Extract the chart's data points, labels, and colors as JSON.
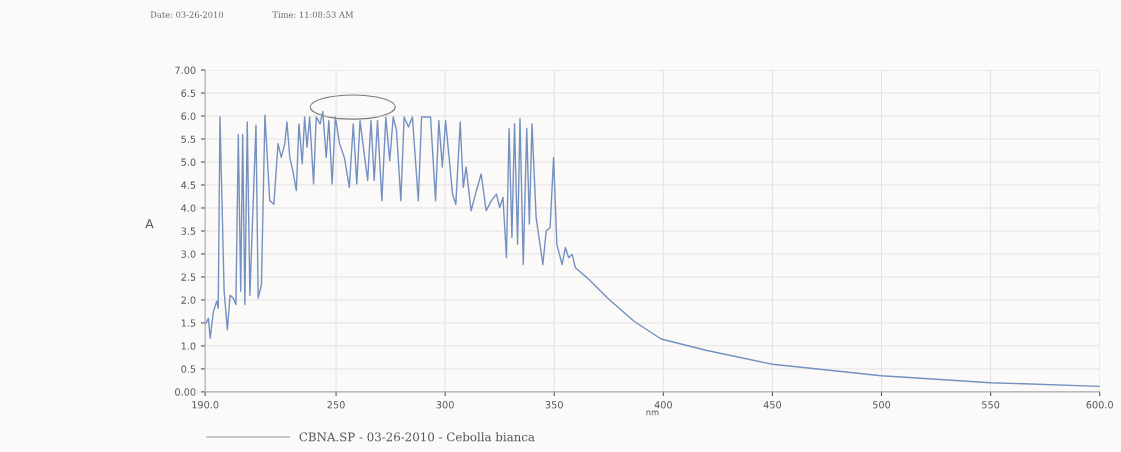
{
  "chart_data": {
    "type": "line",
    "xlabel": "nm",
    "ylabel": "A",
    "annotations": [
      "Date: 03-26-2010",
      "Time: 11:08:53 AM"
    ],
    "x": [
      190,
      191.5,
      192.3,
      193.8,
      195.3,
      196,
      196.8,
      198.7,
      200.2,
      201.4,
      202.9,
      204.1,
      205.2,
      206.3,
      207.2,
      208.2,
      209.3,
      210.5,
      213.3,
      214.3,
      215.8,
      217.4,
      219.6,
      221.5,
      223.4,
      224.9,
      226.5,
      227.5,
      228.8,
      230.3,
      231.8,
      233,
      234.5,
      235.6,
      236.7,
      237.9,
      239.7,
      240.9,
      242.7,
      243.9,
      245.5,
      246.7,
      248.2,
      249.7,
      251.6,
      253.8,
      256.1,
      257.9,
      259.5,
      261,
      262.9,
      264.5,
      266,
      267.5,
      269,
      271,
      272.8,
      274.6,
      276.2,
      277.7,
      279.7,
      281.2,
      283.2,
      285,
      287.7,
      289.2,
      293.3,
      295.6,
      297.1,
      298.7,
      300.2,
      303.4,
      304.9,
      306.9,
      308.3,
      309.6,
      311.9,
      313.9,
      316.5,
      318.8,
      321.2,
      323.5,
      325,
      326.5,
      328.1,
      329.3,
      330.6,
      331.8,
      333.2,
      334.3,
      335.8,
      337.4,
      338.6,
      339.8,
      341.7,
      344.8,
      346.3,
      348.1,
      349.7,
      351.2,
      353.6,
      355.1,
      356.6,
      358.2,
      359.7,
      365.1,
      374.4,
      386.7,
      399,
      420,
      450,
      500,
      550,
      600
    ],
    "series": [
      {
        "name": "CBNA.SP - 03-26-2010 - Cebolla bianca",
        "color": "#7390c0",
        "values": [
          1.46,
          1.6,
          1.17,
          1.75,
          1.97,
          1.82,
          5.98,
          2.19,
          1.35,
          2.1,
          2.04,
          1.9,
          5.6,
          2.19,
          5.6,
          1.9,
          5.87,
          2.1,
          5.8,
          2.04,
          2.33,
          6.02,
          4.16,
          4.08,
          5.4,
          5.1,
          5.4,
          5.87,
          5.1,
          4.78,
          4.38,
          5.83,
          4.96,
          5.98,
          5.32,
          5.98,
          4.52,
          5.98,
          5.83,
          6.1,
          5.1,
          5.9,
          4.52,
          5.98,
          5.4,
          5.1,
          4.45,
          5.83,
          4.52,
          5.9,
          5.18,
          4.6,
          5.9,
          4.6,
          5.9,
          4.16,
          5.98,
          5.03,
          5.98,
          5.69,
          4.16,
          5.98,
          5.76,
          5.98,
          4.16,
          5.98,
          5.98,
          4.16,
          5.9,
          4.89,
          5.9,
          4.3,
          4.08,
          5.87,
          4.45,
          4.89,
          3.94,
          4.3,
          4.74,
          3.94,
          4.16,
          4.3,
          4.01,
          4.23,
          2.92,
          5.73,
          3.36,
          5.83,
          3.21,
          5.94,
          2.77,
          5.73,
          3.65,
          5.83,
          3.79,
          2.77,
          3.5,
          3.57,
          5.1,
          3.21,
          2.77,
          3.14,
          2.92,
          2.99,
          2.7,
          2.48,
          2.04,
          1.53,
          1.15,
          0.9,
          0.6,
          0.35,
          0.2,
          0.12
        ]
      }
    ],
    "xlim": [
      190,
      600
    ],
    "xticks": [
      {
        "value": 190,
        "label": "190.0"
      },
      250,
      300,
      350,
      400,
      450,
      500,
      550,
      {
        "value": 600,
        "label": "600.0"
      }
    ],
    "ylim": [
      0,
      7
    ],
    "yticks": [
      {
        "value": 0,
        "label": "0.00"
      },
      {
        "value": 0.5,
        "label": "0.5"
      },
      {
        "value": 1,
        "label": "1.0"
      },
      {
        "value": 1.5,
        "label": "1.5"
      },
      {
        "value": 2,
        "label": "2.0"
      },
      {
        "value": 2.5,
        "label": "2.5"
      },
      {
        "value": 3,
        "label": "3.0"
      },
      {
        "value": 3.5,
        "label": "3.5"
      },
      {
        "value": 4,
        "label": "4.0"
      },
      {
        "value": 4.5,
        "label": "4.5"
      },
      {
        "value": 5,
        "label": "5.0"
      },
      {
        "value": 5.5,
        "label": "5.5"
      },
      {
        "value": 6,
        "label": "6.0"
      },
      {
        "value": 6.5,
        "label": "6.5"
      },
      {
        "value": 7,
        "label": "7.00"
      }
    ],
    "grid": true,
    "legend": "bottom",
    "marker": "none",
    "line_style": "solid"
  }
}
